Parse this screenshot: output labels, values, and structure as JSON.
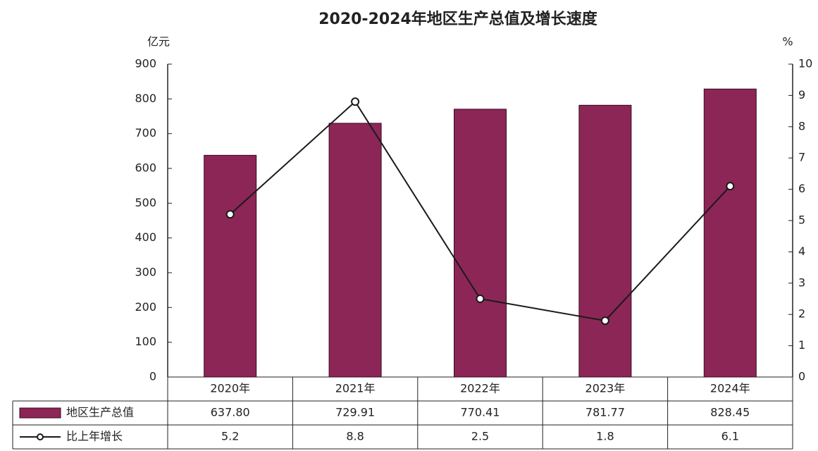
{
  "chart_data": {
    "type": "bar-line-table",
    "title": "2020-2024年地区生产总值及增长速度",
    "ylabel": "亿元",
    "y2label": "%",
    "categories": [
      "2020年",
      "2021年",
      "2022年",
      "2023年",
      "2024年"
    ],
    "series": [
      {
        "name": "地区生产总值",
        "type": "bar",
        "color": "#8c2657",
        "values": [
          637.8,
          729.91,
          770.41,
          781.77,
          828.45
        ],
        "value_labels": [
          "637.80",
          "729.91",
          "770.41",
          "781.77",
          "828.45"
        ]
      },
      {
        "name": "比上年增长",
        "type": "line",
        "color": "#1a1a1a",
        "axis": "y2",
        "values": [
          5.2,
          8.8,
          2.5,
          1.8,
          6.1
        ]
      }
    ],
    "ylim": [
      0,
      900
    ],
    "yticks": [
      0,
      100,
      200,
      300,
      400,
      500,
      600,
      700,
      800,
      900
    ],
    "y2lim": [
      0,
      10
    ],
    "y2ticks": [
      0,
      1,
      2,
      3,
      4,
      5,
      6,
      7,
      8,
      9,
      10
    ]
  }
}
